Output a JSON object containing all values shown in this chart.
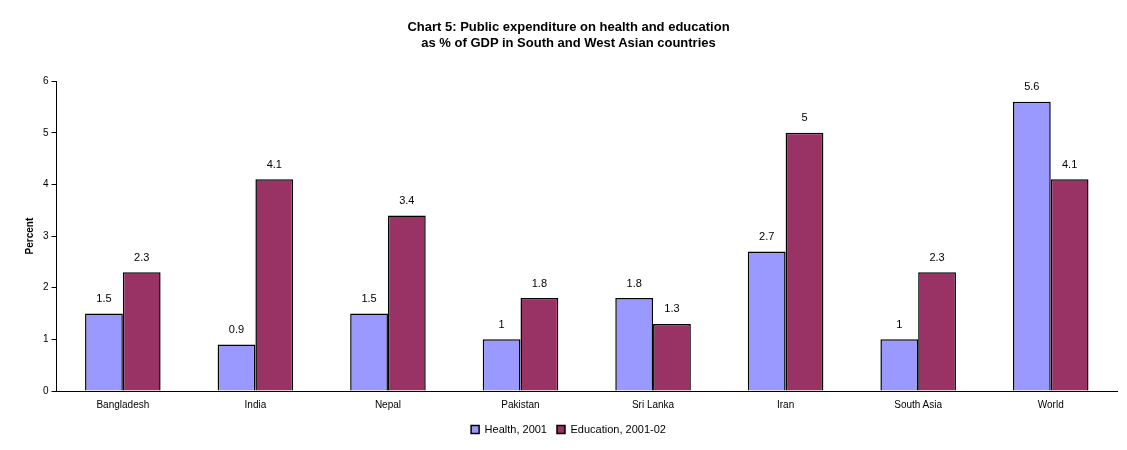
{
  "chart_data": {
    "type": "bar",
    "title": [
      "Chart 5: Public expenditure on health and education",
      "as % of GDP in South and West Asian countries"
    ],
    "ylabel": "Percent",
    "categories": [
      "Bangladesh",
      "India",
      "Nepal",
      "Pakistan",
      "Sri Lanka",
      "Iran",
      "South Asia",
      "World"
    ],
    "series": [
      {
        "name": "Health, 2001",
        "color": "#9999ff",
        "values": [
          1.5,
          0.9,
          1.5,
          1,
          1.8,
          2.7,
          1,
          5.6
        ]
      },
      {
        "name": "Education, 2001-02",
        "color": "#993366",
        "values": [
          2.3,
          4.1,
          3.4,
          1.8,
          1.3,
          5,
          2.3,
          4.1
        ]
      }
    ],
    "ylim": [
      0,
      6
    ],
    "yticks": [
      0,
      1,
      2,
      3,
      4,
      5,
      6
    ],
    "grid": false,
    "legend": "bottom",
    "data_labels": true
  }
}
